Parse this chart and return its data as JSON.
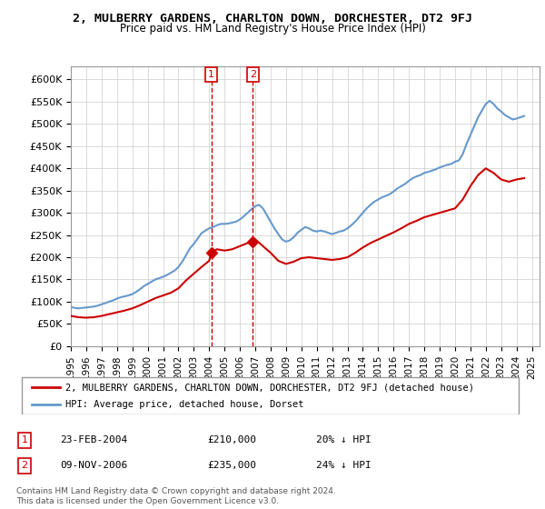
{
  "title": "2, MULBERRY GARDENS, CHARLTON DOWN, DORCHESTER, DT2 9FJ",
  "subtitle": "Price paid vs. HM Land Registry's House Price Index (HPI)",
  "ylabel_ticks": [
    "£0",
    "£50K",
    "£100K",
    "£150K",
    "£200K",
    "£250K",
    "£300K",
    "£350K",
    "£400K",
    "£450K",
    "£500K",
    "£550K",
    "£600K"
  ],
  "ylim": [
    0,
    630000
  ],
  "xlim_start": 1995.0,
  "xlim_end": 2025.5,
  "sale1_x": 2004.14,
  "sale1_y": 210000,
  "sale2_x": 2006.85,
  "sale2_y": 235000,
  "legend_property": "2, MULBERRY GARDENS, CHARLTON DOWN, DORCHESTER, DT2 9FJ (detached house)",
  "legend_hpi": "HPI: Average price, detached house, Dorset",
  "table_row1": [
    "1",
    "23-FEB-2004",
    "£210,000",
    "20% ↓ HPI"
  ],
  "table_row2": [
    "2",
    "09-NOV-2006",
    "£235,000",
    "24% ↓ HPI"
  ],
  "footnote": "Contains HM Land Registry data © Crown copyright and database right 2024.\nThis data is licensed under the Open Government Licence v3.0.",
  "line_color_property": "#cc0000",
  "line_color_hpi": "#6699cc",
  "background_color": "#ffffff",
  "grid_color": "#cccccc",
  "hpi_data_x": [
    1995.0,
    1995.25,
    1995.5,
    1995.75,
    1996.0,
    1996.25,
    1996.5,
    1996.75,
    1997.0,
    1997.25,
    1997.5,
    1997.75,
    1998.0,
    1998.25,
    1998.5,
    1998.75,
    1999.0,
    1999.25,
    1999.5,
    1999.75,
    2000.0,
    2000.25,
    2000.5,
    2000.75,
    2001.0,
    2001.25,
    2001.5,
    2001.75,
    2002.0,
    2002.25,
    2002.5,
    2002.75,
    2003.0,
    2003.25,
    2003.5,
    2003.75,
    2004.0,
    2004.25,
    2004.5,
    2004.75,
    2005.0,
    2005.25,
    2005.5,
    2005.75,
    2006.0,
    2006.25,
    2006.5,
    2006.75,
    2007.0,
    2007.25,
    2007.5,
    2007.75,
    2008.0,
    2008.25,
    2008.5,
    2008.75,
    2009.0,
    2009.25,
    2009.5,
    2009.75,
    2010.0,
    2010.25,
    2010.5,
    2010.75,
    2011.0,
    2011.25,
    2011.5,
    2011.75,
    2012.0,
    2012.25,
    2012.5,
    2012.75,
    2013.0,
    2013.25,
    2013.5,
    2013.75,
    2014.0,
    2014.25,
    2014.5,
    2014.75,
    2015.0,
    2015.25,
    2015.5,
    2015.75,
    2016.0,
    2016.25,
    2016.5,
    2016.75,
    2017.0,
    2017.25,
    2017.5,
    2017.75,
    2018.0,
    2018.25,
    2018.5,
    2018.75,
    2019.0,
    2019.25,
    2019.5,
    2019.75,
    2020.0,
    2020.25,
    2020.5,
    2020.75,
    2021.0,
    2021.25,
    2021.5,
    2021.75,
    2022.0,
    2022.25,
    2022.5,
    2022.75,
    2023.0,
    2023.25,
    2023.5,
    2023.75,
    2024.0,
    2024.25,
    2024.5
  ],
  "hpi_data_y": [
    88000,
    86000,
    85000,
    86000,
    87000,
    88000,
    89000,
    91000,
    94000,
    97000,
    100000,
    103000,
    107000,
    110000,
    112000,
    114000,
    117000,
    122000,
    128000,
    135000,
    140000,
    145000,
    150000,
    153000,
    156000,
    160000,
    165000,
    170000,
    178000,
    190000,
    205000,
    220000,
    230000,
    242000,
    254000,
    260000,
    265000,
    268000,
    272000,
    275000,
    275000,
    276000,
    278000,
    280000,
    285000,
    292000,
    300000,
    308000,
    315000,
    318000,
    310000,
    295000,
    280000,
    265000,
    252000,
    240000,
    235000,
    238000,
    245000,
    255000,
    262000,
    268000,
    265000,
    260000,
    258000,
    260000,
    258000,
    255000,
    252000,
    255000,
    258000,
    260000,
    265000,
    272000,
    280000,
    290000,
    300000,
    310000,
    318000,
    325000,
    330000,
    335000,
    338000,
    342000,
    348000,
    355000,
    360000,
    365000,
    372000,
    378000,
    382000,
    385000,
    390000,
    392000,
    395000,
    398000,
    402000,
    405000,
    408000,
    410000,
    415000,
    418000,
    432000,
    455000,
    475000,
    495000,
    515000,
    530000,
    545000,
    552000,
    545000,
    535000,
    528000,
    520000,
    515000,
    510000,
    512000,
    515000,
    518000
  ],
  "prop_data_x": [
    1995.0,
    1995.5,
    1996.0,
    1996.5,
    1997.0,
    1997.5,
    1998.0,
    1998.5,
    1999.0,
    1999.5,
    2000.0,
    2000.5,
    2001.0,
    2001.5,
    2002.0,
    2002.5,
    2003.0,
    2003.5,
    2004.0,
    2004.14,
    2004.5,
    2005.0,
    2005.5,
    2006.0,
    2006.5,
    2006.85,
    2007.0,
    2007.5,
    2008.0,
    2008.5,
    2009.0,
    2009.5,
    2010.0,
    2010.5,
    2011.0,
    2011.5,
    2012.0,
    2012.5,
    2013.0,
    2013.5,
    2014.0,
    2014.5,
    2015.0,
    2015.5,
    2016.0,
    2016.5,
    2017.0,
    2017.5,
    2018.0,
    2018.5,
    2019.0,
    2019.5,
    2020.0,
    2020.5,
    2021.0,
    2021.5,
    2022.0,
    2022.5,
    2023.0,
    2023.5,
    2024.0,
    2024.5
  ],
  "prop_data_y": [
    68000,
    65000,
    64000,
    65000,
    68000,
    72000,
    76000,
    80000,
    85000,
    92000,
    100000,
    108000,
    114000,
    120000,
    130000,
    148000,
    163000,
    178000,
    192000,
    210000,
    218000,
    215000,
    218000,
    225000,
    232000,
    235000,
    240000,
    225000,
    210000,
    192000,
    185000,
    190000,
    198000,
    200000,
    198000,
    196000,
    194000,
    196000,
    200000,
    210000,
    222000,
    232000,
    240000,
    248000,
    256000,
    265000,
    275000,
    282000,
    290000,
    295000,
    300000,
    305000,
    310000,
    330000,
    360000,
    385000,
    400000,
    390000,
    375000,
    370000,
    375000,
    378000
  ]
}
